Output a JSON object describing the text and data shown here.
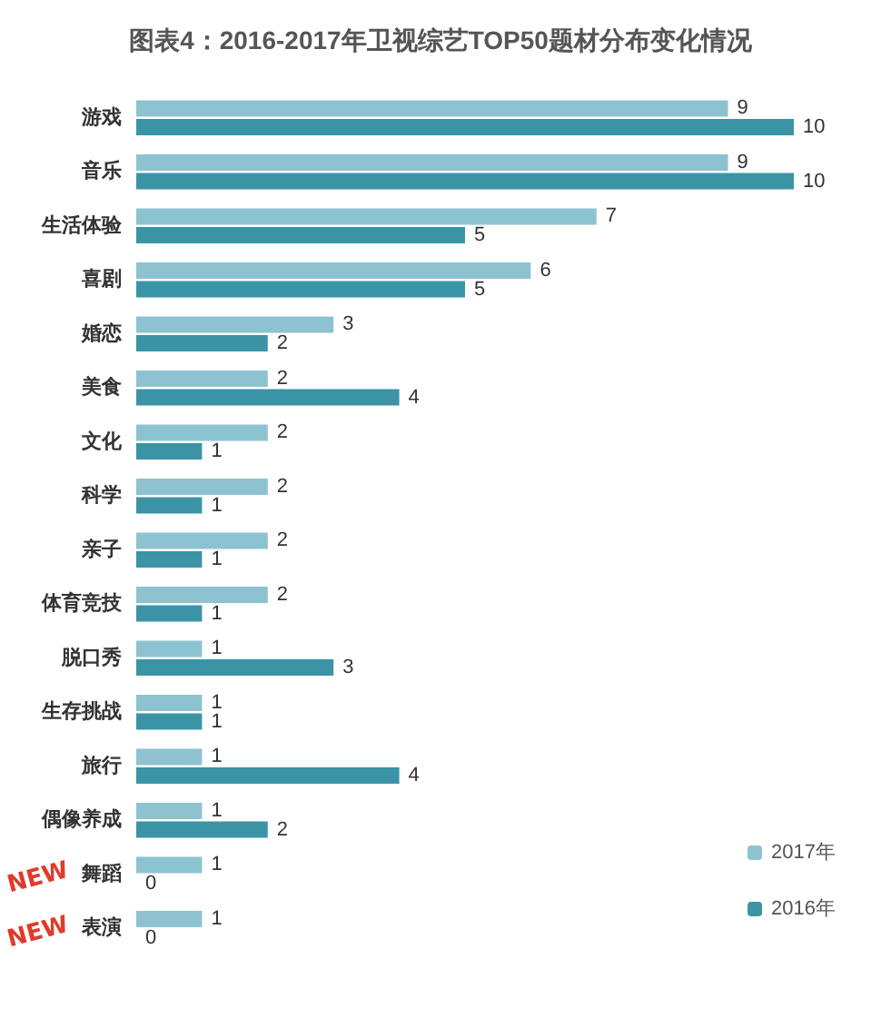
{
  "chart_data": {
    "type": "bar",
    "orientation": "horizontal",
    "title": "图表4：2016-2017年卫视综艺TOP50题材分布变化情况",
    "categories": [
      "游戏",
      "音乐",
      "生活体验",
      "喜剧",
      "婚恋",
      "美食",
      "文化",
      "科学",
      "亲子",
      "体育竞技",
      "脱口秀",
      "生存挑战",
      "旅行",
      "偶像养成",
      "舞蹈",
      "表演"
    ],
    "series": [
      {
        "name": "2017年",
        "color": "#8dc3d1",
        "values": [
          9,
          9,
          7,
          6,
          3,
          2,
          2,
          2,
          2,
          2,
          1,
          1,
          1,
          1,
          1,
          1
        ]
      },
      {
        "name": "2016年",
        "color": "#3a94a6",
        "values": [
          10,
          10,
          5,
          5,
          2,
          4,
          1,
          1,
          1,
          1,
          3,
          1,
          4,
          2,
          0,
          0
        ]
      }
    ],
    "data_labels": true,
    "legend": "bottom right",
    "annotations": [
      "NEW",
      "NEW"
    ]
  }
}
